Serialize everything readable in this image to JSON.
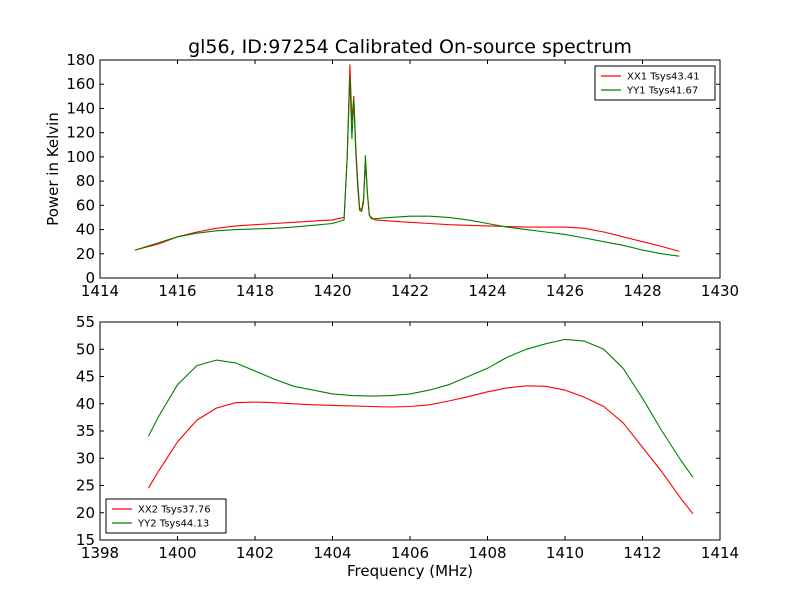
{
  "chart_data": [
    {
      "type": "line",
      "title": "gl56, ID:97254 Calibrated On-source spectrum",
      "xlabel": "",
      "ylabel": "Power in Kelvin",
      "xlim": [
        1414,
        1430
      ],
      "ylim": [
        0,
        180
      ],
      "xticks": [
        "1414",
        "1416",
        "1418",
        "1420",
        "1422",
        "1424",
        "1426",
        "1428",
        "1430"
      ],
      "yticks": [
        "0",
        "20",
        "40",
        "60",
        "80",
        "100",
        "120",
        "140",
        "160",
        "180"
      ],
      "legend": "top-right",
      "grid": false,
      "series": [
        {
          "name": "XX1 Tsys43.41",
          "color": "#ff0000",
          "x": [
            1414.9,
            1415.5,
            1416.0,
            1416.5,
            1417.0,
            1417.5,
            1418.0,
            1418.5,
            1419.0,
            1419.5,
            1420.0,
            1420.3,
            1420.38,
            1420.45,
            1420.5,
            1420.55,
            1420.6,
            1420.65,
            1420.7,
            1420.75,
            1420.8,
            1420.85,
            1420.9,
            1420.95,
            1421.0,
            1421.1,
            1421.5,
            1422.0,
            1422.5,
            1423.0,
            1423.5,
            1424.0,
            1424.5,
            1425.0,
            1425.5,
            1426.0,
            1426.5,
            1427.0,
            1427.5,
            1428.0,
            1428.5,
            1428.95
          ],
          "values": [
            23,
            28,
            34,
            38,
            41,
            43,
            44,
            45,
            46,
            47,
            48,
            50,
            100,
            176,
            130,
            150,
            110,
            80,
            58,
            56,
            65,
            95,
            70,
            52,
            50,
            48,
            47,
            46,
            45,
            44,
            43.5,
            43,
            42.5,
            42,
            42,
            42,
            41,
            38,
            34,
            30,
            26,
            22
          ]
        },
        {
          "name": "YY1 Tsys41.67",
          "color": "#008000",
          "x": [
            1414.9,
            1415.5,
            1416.0,
            1416.5,
            1417.0,
            1417.5,
            1418.0,
            1418.5,
            1419.0,
            1419.5,
            1420.0,
            1420.3,
            1420.38,
            1420.45,
            1420.5,
            1420.55,
            1420.6,
            1420.65,
            1420.7,
            1420.75,
            1420.8,
            1420.85,
            1420.9,
            1420.95,
            1421.0,
            1421.1,
            1421.5,
            1422.0,
            1422.5,
            1423.0,
            1423.5,
            1424.0,
            1424.5,
            1425.0,
            1425.5,
            1426.0,
            1426.5,
            1427.0,
            1427.5,
            1428.0,
            1428.5,
            1428.95
          ],
          "values": [
            23,
            29,
            34,
            37,
            39,
            40,
            40.5,
            41,
            42,
            43.5,
            45,
            48,
            100,
            166,
            115,
            148,
            105,
            75,
            56,
            55,
            62,
            101,
            70,
            52,
            49,
            49,
            50,
            51,
            51,
            50,
            48,
            45,
            42,
            40,
            38,
            36,
            33,
            30,
            27,
            23,
            20,
            18
          ]
        }
      ]
    },
    {
      "type": "line",
      "title": "",
      "xlabel": "Frequency (MHz)",
      "ylabel": "",
      "xlim": [
        1398,
        1414
      ],
      "ylim": [
        15,
        55
      ],
      "xticks": [
        "1398",
        "1400",
        "1402",
        "1404",
        "1406",
        "1408",
        "1410",
        "1412",
        "1414"
      ],
      "yticks": [
        "15",
        "20",
        "25",
        "30",
        "35",
        "40",
        "45",
        "50",
        "55"
      ],
      "legend": "bottom-left",
      "grid": false,
      "series": [
        {
          "name": "XX2 Tsys37.76",
          "color": "#ff0000",
          "x": [
            1399.25,
            1399.5,
            1400.0,
            1400.5,
            1401.0,
            1401.5,
            1402.0,
            1402.5,
            1403.0,
            1403.5,
            1404.0,
            1404.5,
            1405.0,
            1405.5,
            1406.0,
            1406.5,
            1407.0,
            1407.5,
            1408.0,
            1408.5,
            1409.0,
            1409.5,
            1410.0,
            1410.5,
            1411.0,
            1411.5,
            1412.0,
            1412.5,
            1413.0,
            1413.3
          ],
          "values": [
            24.5,
            27.5,
            33,
            37,
            39.2,
            40.2,
            40.3,
            40.2,
            40,
            39.8,
            39.7,
            39.6,
            39.5,
            39.4,
            39.5,
            39.8,
            40.5,
            41.3,
            42.2,
            42.9,
            43.3,
            43.2,
            42.5,
            41.2,
            39.5,
            36.5,
            32,
            27.5,
            22.5,
            19.8
          ]
        },
        {
          "name": "YY2 Tsys44.13",
          "color": "#008000",
          "x": [
            1399.25,
            1399.5,
            1400.0,
            1400.5,
            1401.0,
            1401.5,
            1402.0,
            1402.5,
            1403.0,
            1403.5,
            1404.0,
            1404.5,
            1405.0,
            1405.5,
            1406.0,
            1406.5,
            1407.0,
            1407.5,
            1408.0,
            1408.5,
            1409.0,
            1409.5,
            1410.0,
            1410.5,
            1411.0,
            1411.5,
            1412.0,
            1412.5,
            1413.0,
            1413.3
          ],
          "values": [
            34,
            37.5,
            43.5,
            47,
            48,
            47.5,
            46,
            44.5,
            43.2,
            42.5,
            41.8,
            41.5,
            41.4,
            41.5,
            41.8,
            42.5,
            43.5,
            45,
            46.5,
            48.5,
            50,
            51,
            51.8,
            51.5,
            50,
            46.5,
            41,
            35,
            29.5,
            26.5
          ]
        }
      ]
    }
  ]
}
